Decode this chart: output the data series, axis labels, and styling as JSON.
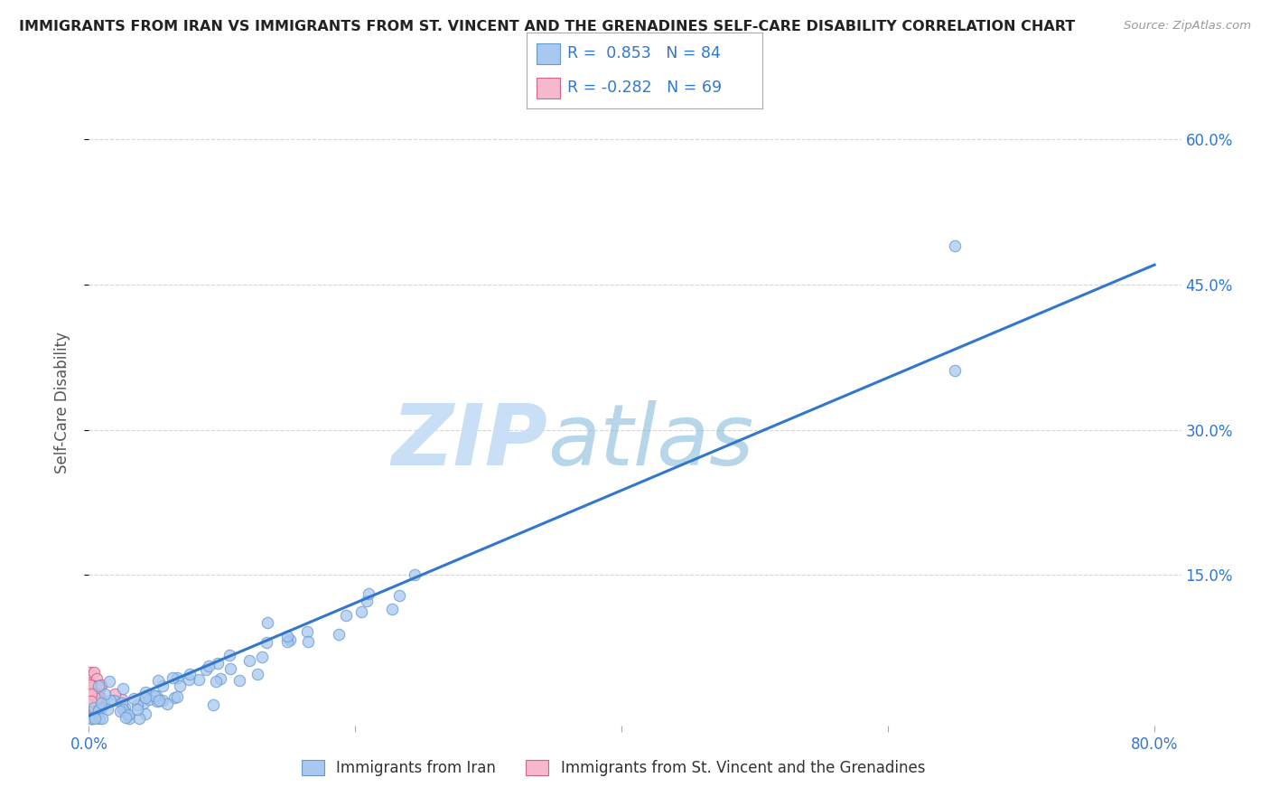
{
  "title": "IMMIGRANTS FROM IRAN VS IMMIGRANTS FROM ST. VINCENT AND THE GRENADINES SELF-CARE DISABILITY CORRELATION CHART",
  "source": "Source: ZipAtlas.com",
  "ylabel": "Self-Care Disability",
  "xlabel_iran": "Immigrants from Iran",
  "xlabel_stvincent": "Immigrants from St. Vincent and the Grenadines",
  "xlim": [
    0.0,
    0.82
  ],
  "ylim": [
    -0.005,
    0.66
  ],
  "iran_R": 0.853,
  "iran_N": 84,
  "stvincent_R": -0.282,
  "stvincent_N": 69,
  "iran_color": "#a8c8f0",
  "iran_edge_color": "#6699cc",
  "stvincent_color": "#f5b8cc",
  "stvincent_edge_color": "#cc6688",
  "iran_line_color": "#3377cc",
  "grid_color": "#cccccc",
  "background_color": "#ffffff",
  "watermark_zip_color": "#c8dff5",
  "watermark_atlas_color": "#88bbdd",
  "title_color": "#222222",
  "source_color": "#999999",
  "legend_R_color": "#3377cc",
  "axis_tick_color": "#3377cc",
  "axis_label_color": "#555555",
  "line_start_x": 0.0,
  "line_start_y": 0.005,
  "line_end_x": 0.8,
  "line_end_y": 0.47
}
